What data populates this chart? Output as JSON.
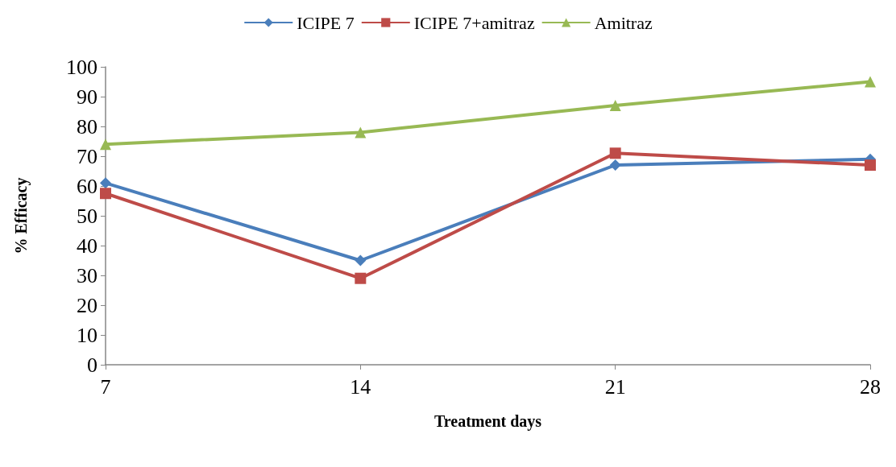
{
  "chart_data": {
    "type": "line",
    "xlabel": "Treatment days",
    "ylabel": "% Efficacy",
    "categories": [
      "7",
      "14",
      "21",
      "28"
    ],
    "series": [
      {
        "name": "ICIPE 7",
        "color": "#4a7ebb",
        "values": [
          61,
          35,
          67,
          69
        ],
        "marker": "diamond"
      },
      {
        "name": "ICIPE 7+amitraz",
        "color": "#be4b48",
        "values": [
          57.5,
          29,
          71,
          67
        ],
        "marker": "square"
      },
      {
        "name": "Amitraz",
        "color": "#98b954",
        "values": [
          74,
          78,
          87,
          95
        ],
        "marker": "triangle"
      }
    ],
    "ylim": [
      0,
      100
    ],
    "yticks": [
      0,
      10,
      20,
      30,
      40,
      50,
      60,
      70,
      80,
      90,
      100
    ],
    "grid": false,
    "legend": "top"
  }
}
